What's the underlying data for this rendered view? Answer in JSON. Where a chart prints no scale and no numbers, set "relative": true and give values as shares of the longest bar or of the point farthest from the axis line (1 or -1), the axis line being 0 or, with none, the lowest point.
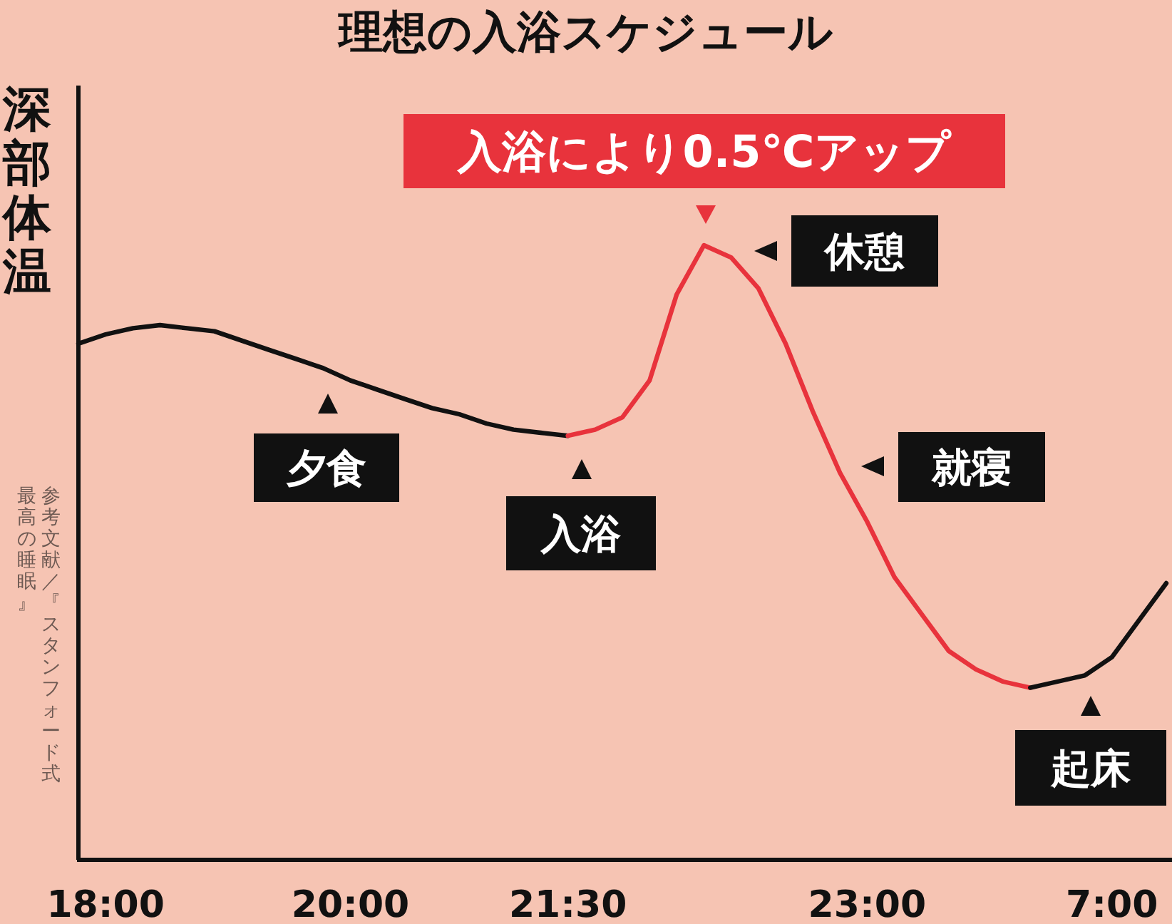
{
  "chart_data": {
    "type": "line",
    "title": "理想の入浴スケジュール",
    "ylabel": "深部体温",
    "relative": true,
    "categories": [
      null,
      "18:00",
      null,
      null,
      null,
      null,
      null,
      null,
      null,
      null,
      "20:00",
      null,
      null,
      null,
      null,
      null,
      null,
      null,
      "21:30",
      null,
      null,
      null,
      null,
      null,
      null,
      null,
      null,
      null,
      null,
      "23:00",
      null,
      null,
      null,
      null,
      null,
      null,
      null,
      null,
      "7:00",
      null,
      null
    ],
    "series": [
      {
        "color": "#111111",
        "values": [
          0.84,
          0.855,
          0.865,
          0.87,
          0.865,
          0.86,
          0.845,
          0.83,
          0.815,
          0.8,
          0.78,
          0.765,
          0.75,
          0.735,
          0.725,
          0.71,
          0.7,
          0.695,
          0.69,
          null,
          null,
          null,
          null,
          null,
          null,
          null,
          null,
          null,
          null,
          null,
          null,
          null,
          null,
          null,
          null,
          null,
          null,
          null,
          null,
          null,
          null
        ]
      },
      {
        "color": "#e8333c",
        "values": [
          null,
          null,
          null,
          null,
          null,
          null,
          null,
          null,
          null,
          null,
          null,
          null,
          null,
          null,
          null,
          null,
          null,
          null,
          0.69,
          0.7,
          0.72,
          0.78,
          0.92,
          1,
          0.98,
          0.93,
          0.84,
          0.73,
          0.63,
          0.55,
          0.46,
          0.4,
          0.34,
          0.31,
          0.29,
          0.28,
          null,
          null,
          null,
          null,
          null
        ]
      },
      {
        "color": "#111111",
        "values": [
          null,
          null,
          null,
          null,
          null,
          null,
          null,
          null,
          null,
          null,
          null,
          null,
          null,
          null,
          null,
          null,
          null,
          null,
          null,
          null,
          null,
          null,
          null,
          null,
          null,
          null,
          null,
          null,
          null,
          null,
          null,
          null,
          null,
          null,
          null,
          0.28,
          0.29,
          0.3,
          0.33,
          0.39,
          0.45
        ]
      }
    ],
    "annotations": [
      "入浴により0.5℃アップ",
      "夕食",
      "入浴",
      "休憩",
      "就寝",
      "起床",
      "参考文献／『スタンフォード式",
      "最高の睡眠』"
    ]
  }
}
